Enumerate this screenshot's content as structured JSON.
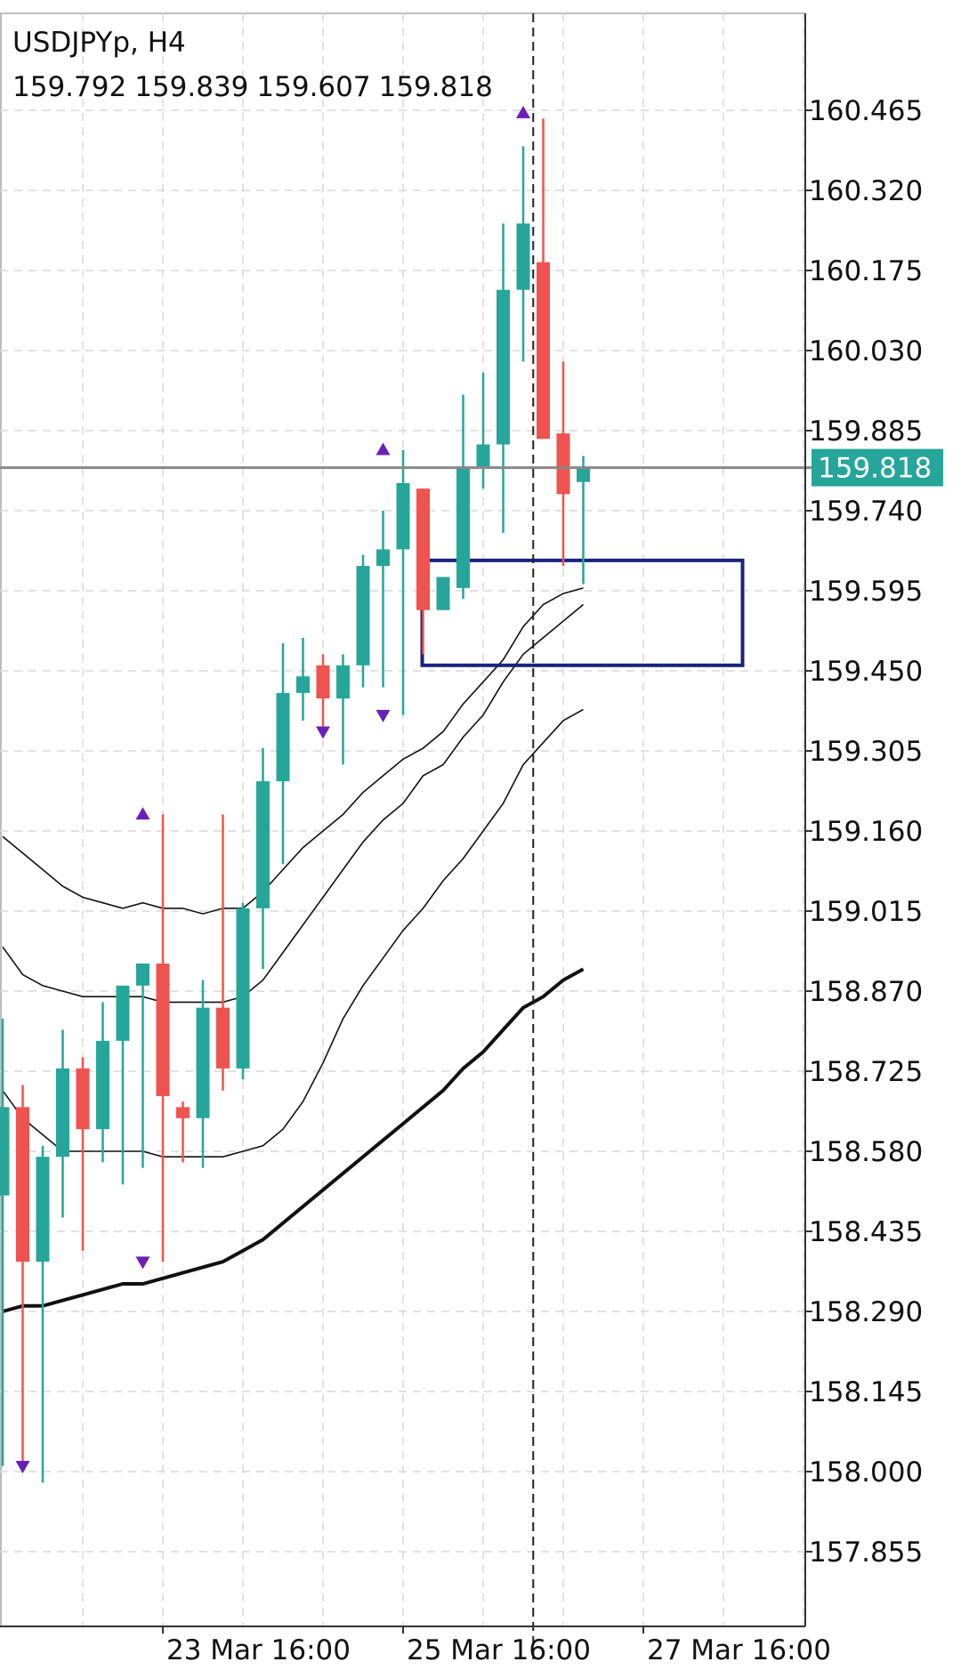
{
  "header": {
    "symbol": "USDJPYp, H4",
    "ohlc": [
      "159.792",
      "159.839",
      "159.607",
      "159.818"
    ]
  },
  "price_axis": {
    "labels": [
      "160.465",
      "160.320",
      "160.175",
      "160.030",
      "159.885",
      "159.740",
      "159.595",
      "159.450",
      "159.305",
      "159.160",
      "159.015",
      "158.870",
      "158.725",
      "158.580",
      "158.435",
      "158.290",
      "158.145",
      "158.000",
      "157.855"
    ],
    "current_price": 159.818,
    "current_price_label": "159.818",
    "current_price_color": "#26a69a"
  },
  "time_axis": {
    "labels": [
      "23 Mar 16:00",
      "25 Mar 16:00",
      "27 Mar 16:00"
    ]
  },
  "colors": {
    "bull": "#26a69a",
    "bear": "#ef5350",
    "grid": "#d9d9d9",
    "arrow": "#6a1fb8",
    "zone": "#1a237e",
    "price_line": "#888888"
  },
  "chart_data": {
    "type": "candlestick",
    "symbol": "USDJPYp",
    "timeframe": "H4",
    "ylim": [
      157.78,
      160.62
    ],
    "y_ticks": [
      160.465,
      160.32,
      160.175,
      160.03,
      159.885,
      159.74,
      159.595,
      159.45,
      159.305,
      159.16,
      159.015,
      158.87,
      158.725,
      158.58,
      158.435,
      158.29,
      158.145,
      158.0,
      157.855
    ],
    "x_tick_labels": [
      "23 Mar 16:00",
      "25 Mar 16:00",
      "27 Mar 16:00"
    ],
    "x_tick_bar_index": [
      8,
      20,
      32
    ],
    "grid": true,
    "candles": [
      {
        "o": 158.5,
        "h": 158.82,
        "l": 158.01,
        "c": 158.66
      },
      {
        "o": 158.66,
        "h": 158.7,
        "l": 158.0,
        "c": 158.38
      },
      {
        "o": 158.38,
        "h": 158.59,
        "l": 157.98,
        "c": 158.57
      },
      {
        "o": 158.57,
        "h": 158.8,
        "l": 158.46,
        "c": 158.73
      },
      {
        "o": 158.73,
        "h": 158.75,
        "l": 158.4,
        "c": 158.62
      },
      {
        "o": 158.62,
        "h": 158.85,
        "l": 158.56,
        "c": 158.78
      },
      {
        "o": 158.78,
        "h": 158.86,
        "l": 158.52,
        "c": 158.88
      },
      {
        "o": 158.88,
        "h": 158.91,
        "l": 158.55,
        "c": 158.92
      },
      {
        "o": 158.92,
        "h": 159.19,
        "l": 158.38,
        "c": 158.68
      },
      {
        "o": 158.66,
        "h": 158.67,
        "l": 158.56,
        "c": 158.64
      },
      {
        "o": 158.64,
        "h": 158.89,
        "l": 158.55,
        "c": 158.84
      },
      {
        "o": 158.84,
        "h": 159.19,
        "l": 158.69,
        "c": 158.73
      },
      {
        "o": 158.73,
        "h": 159.03,
        "l": 158.71,
        "c": 159.02
      },
      {
        "o": 159.02,
        "h": 159.31,
        "l": 158.91,
        "c": 159.25
      },
      {
        "o": 159.25,
        "h": 159.5,
        "l": 159.1,
        "c": 159.41
      },
      {
        "o": 159.41,
        "h": 159.51,
        "l": 159.36,
        "c": 159.44
      },
      {
        "o": 159.46,
        "h": 159.48,
        "l": 159.34,
        "c": 159.4
      },
      {
        "o": 159.4,
        "h": 159.48,
        "l": 159.28,
        "c": 159.46
      },
      {
        "o": 159.46,
        "h": 159.66,
        "l": 159.42,
        "c": 159.64
      },
      {
        "o": 159.64,
        "h": 159.74,
        "l": 159.42,
        "c": 159.67
      },
      {
        "o": 159.67,
        "h": 159.85,
        "l": 159.37,
        "c": 159.79
      },
      {
        "o": 159.78,
        "h": 159.78,
        "l": 159.48,
        "c": 159.56
      },
      {
        "o": 159.56,
        "h": 159.62,
        "l": 159.56,
        "c": 159.62
      },
      {
        "o": 159.6,
        "h": 159.95,
        "l": 159.58,
        "c": 159.82
      },
      {
        "o": 159.82,
        "h": 159.99,
        "l": 159.78,
        "c": 159.86
      },
      {
        "o": 159.86,
        "h": 160.26,
        "l": 159.7,
        "c": 160.14
      },
      {
        "o": 160.14,
        "h": 160.4,
        "l": 160.01,
        "c": 160.26
      },
      {
        "o": 160.19,
        "h": 160.45,
        "l": 159.87,
        "c": 159.87
      },
      {
        "o": 159.88,
        "h": 160.01,
        "l": 159.64,
        "c": 159.77
      },
      {
        "o": 159.792,
        "h": 159.839,
        "l": 159.607,
        "c": 159.818
      }
    ],
    "fractal_arrows": [
      {
        "bar": 1,
        "direction": "down",
        "price": 158.0
      },
      {
        "bar": 7,
        "direction": "up",
        "price": 159.2
      },
      {
        "bar": 7,
        "direction": "down",
        "price": 158.37
      },
      {
        "bar": 16,
        "direction": "down",
        "price": 159.33
      },
      {
        "bar": 19,
        "direction": "up",
        "price": 159.86
      },
      {
        "bar": 19,
        "direction": "down",
        "price": 159.36
      },
      {
        "bar": 26,
        "direction": "up",
        "price": 160.47
      }
    ],
    "series": [
      {
        "values": [
          159.15,
          159.12,
          159.09,
          159.06,
          159.04,
          159.03,
          159.02,
          159.03,
          159.02,
          159.02,
          159.01,
          159.02,
          159.02,
          159.05,
          159.09,
          159.13,
          159.16,
          159.19,
          159.23,
          159.26,
          159.29,
          159.31,
          159.34,
          159.39,
          159.43,
          159.47,
          159.53,
          159.57,
          159.59,
          159.6
        ]
      },
      {
        "values": [
          158.95,
          158.9,
          158.88,
          158.87,
          158.86,
          158.86,
          158.86,
          158.86,
          158.85,
          158.85,
          158.85,
          158.85,
          158.86,
          158.89,
          158.94,
          158.99,
          159.04,
          159.09,
          159.14,
          159.18,
          159.21,
          159.26,
          159.28,
          159.33,
          159.37,
          159.43,
          159.48,
          159.51,
          159.54,
          159.57
        ]
      },
      {
        "values": [
          158.69,
          158.64,
          158.61,
          158.58,
          158.58,
          158.58,
          158.58,
          158.58,
          158.57,
          158.57,
          158.57,
          158.57,
          158.58,
          158.59,
          158.62,
          158.67,
          158.74,
          158.82,
          158.88,
          158.93,
          158.98,
          159.02,
          159.07,
          159.11,
          159.16,
          159.21,
          159.28,
          159.32,
          159.36,
          159.38
        ]
      },
      {
        "values": [
          158.29,
          158.3,
          158.3,
          158.31,
          158.32,
          158.33,
          158.34,
          158.34,
          158.35,
          158.36,
          158.37,
          158.38,
          158.4,
          158.42,
          158.45,
          158.48,
          158.51,
          158.54,
          158.57,
          158.6,
          158.63,
          158.66,
          158.69,
          158.73,
          158.76,
          158.8,
          158.84,
          158.86,
          158.89,
          158.91
        ]
      }
    ],
    "zone": {
      "from_bar": 21,
      "to_bar": 37,
      "top": 159.65,
      "bottom": 159.46
    },
    "vertical_marker_bar": 26.5
  }
}
